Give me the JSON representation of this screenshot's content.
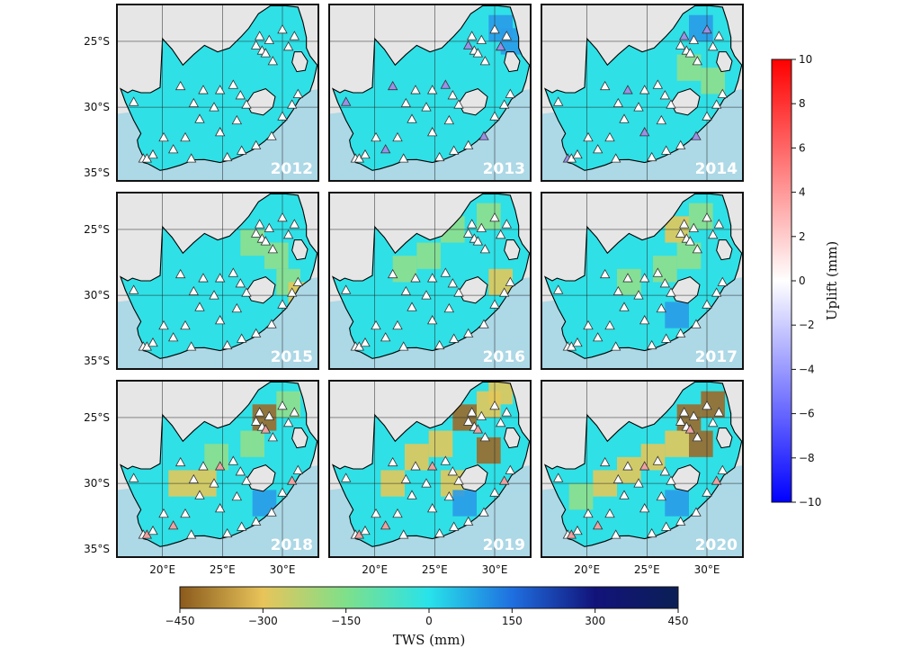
{
  "figure": {
    "panels": [
      {
        "year": "2012"
      },
      {
        "year": "2013"
      },
      {
        "year": "2014"
      },
      {
        "year": "2015"
      },
      {
        "year": "2016"
      },
      {
        "year": "2017"
      },
      {
        "year": "2018"
      },
      {
        "year": "2019"
      },
      {
        "year": "2020"
      }
    ],
    "lat_ticks": [
      "25°S",
      "30°S",
      "35°S"
    ],
    "lon_ticks": [
      "20°E",
      "25°E",
      "30°E"
    ],
    "tws_colorbar": {
      "title": "TWS  (mm)",
      "ticks": [
        "−450",
        "−300",
        "−150",
        "0",
        "150",
        "300",
        "450"
      ],
      "range": [
        -450,
        450
      ],
      "stops": [
        "#8a5a1c",
        "#e8c45a",
        "#7ee08a",
        "#28e3ea",
        "#1f6fe0",
        "#12137a",
        "#0b1f55"
      ]
    },
    "uplift_colorbar": {
      "title": "Uplift (mm)",
      "ticks": [
        "10",
        "8",
        "6",
        "4",
        "2",
        "0",
        "−2",
        "−4",
        "−6",
        "−8",
        "−10"
      ],
      "range": [
        -10,
        10
      ],
      "stops": [
        "#ff0000",
        "#ffffff",
        "#0000ff"
      ]
    },
    "colors": {
      "land_base": "#2fe0e6",
      "ocean": "#add8e6",
      "neighbor_land": "#e6e6e6",
      "lesotho": "#e6e6e6",
      "dry_light": "#8fdf8c",
      "dry_medium": "#e3c85a",
      "dry_heavy": "#9b6a2a",
      "wet_blue": "#2a9be8"
    }
  }
}
